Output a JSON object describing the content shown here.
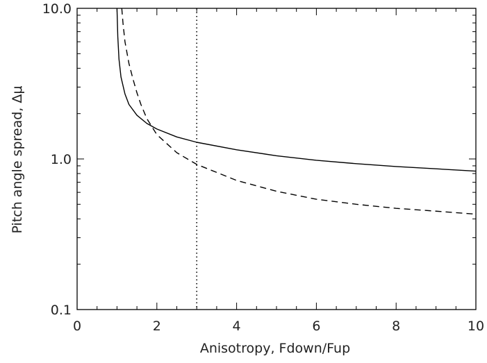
{
  "chart_data": {
    "type": "line",
    "title": "",
    "xlabel": "Anisotropy, Fdown/Fup",
    "ylabel": "Pitch angle spread, Δμ",
    "xlim": [
      0,
      10
    ],
    "ylim": [
      0.1,
      10.0
    ],
    "yscale": "log",
    "grid": false,
    "x_ticks": [
      0,
      2,
      4,
      6,
      8,
      10
    ],
    "x_tick_labels": [
      "0",
      "2",
      "4",
      "6",
      "8",
      "10"
    ],
    "y_ticks": [
      0.1,
      1.0,
      10.0
    ],
    "y_tick_labels": [
      "0.1",
      "1.0",
      "10.0"
    ],
    "series": [
      {
        "style": "solid",
        "x": [
          1.0,
          1.02,
          1.05,
          1.1,
          1.2,
          1.3,
          1.5,
          1.75,
          2.0,
          2.5,
          3.0,
          4.0,
          5.0,
          6.0,
          7.0,
          8.0,
          9.0,
          10.0
        ],
        "y": [
          10.0,
          6.5,
          4.6,
          3.5,
          2.7,
          2.3,
          1.95,
          1.72,
          1.58,
          1.4,
          1.29,
          1.15,
          1.05,
          0.98,
          0.93,
          0.89,
          0.86,
          0.83
        ]
      },
      {
        "style": "dashed",
        "x": [
          1.12,
          1.15,
          1.2,
          1.3,
          1.4,
          1.5,
          1.6,
          1.75,
          2.0,
          2.5,
          3.0,
          4.0,
          5.0,
          6.0,
          7.0,
          8.0,
          9.0,
          10.0
        ],
        "y": [
          10.0,
          8.0,
          6.0,
          4.3,
          3.4,
          2.75,
          2.3,
          1.85,
          1.45,
          1.1,
          0.92,
          0.72,
          0.61,
          0.54,
          0.5,
          0.47,
          0.45,
          0.43
        ]
      }
    ],
    "vlines": [
      {
        "x": 3.0,
        "style": "dotted"
      }
    ]
  }
}
